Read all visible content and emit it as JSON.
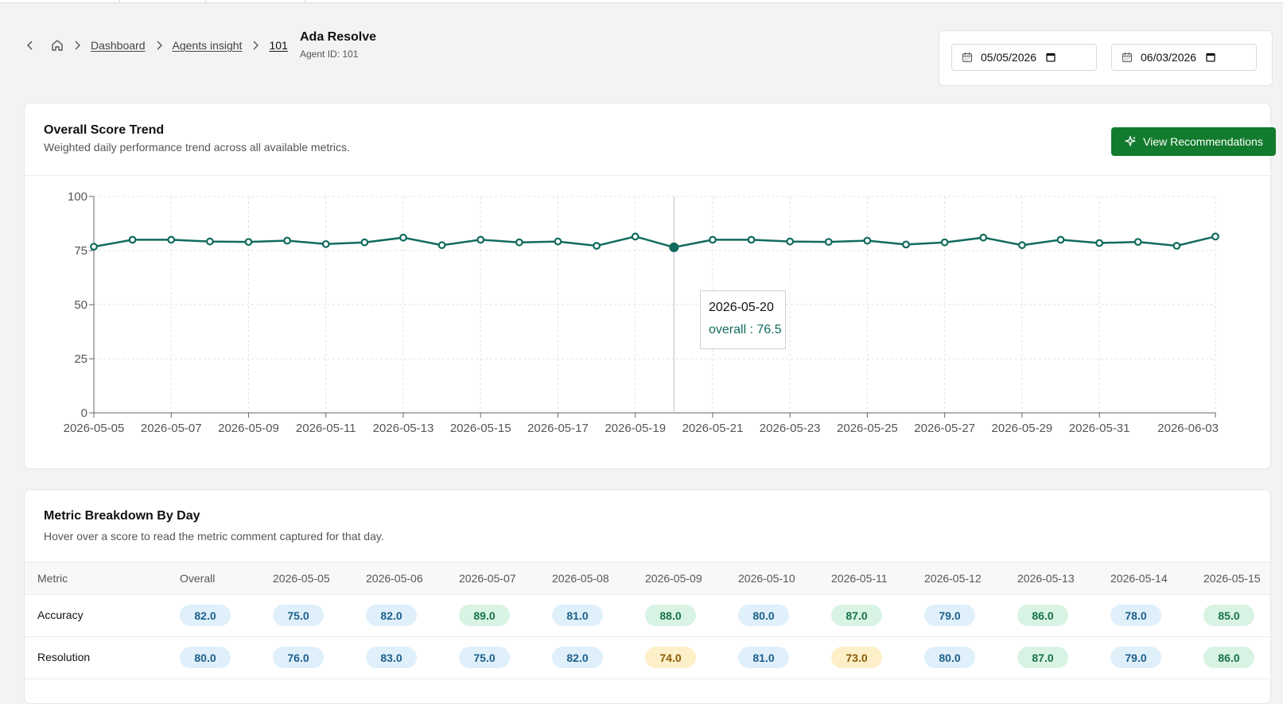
{
  "breadcrumb": {
    "items": [
      "Dashboard",
      "Agents insight",
      "101"
    ]
  },
  "agent": {
    "name": "Ada Resolve",
    "id_text": "Agent ID: 101"
  },
  "date_range": {
    "start": "05/05/2026",
    "end": "06/03/2026"
  },
  "trend_card": {
    "title": "Overall Score Trend",
    "subtitle": "Weighted daily performance trend across all available metrics.",
    "button_label": "View Recommendations"
  },
  "tooltip": {
    "date": "2026-05-20",
    "text": "overall : 76.5"
  },
  "colors": {
    "accent": "#137b2d",
    "line": "#116b5e"
  },
  "chart_data": {
    "type": "line",
    "x": [
      "2026-05-05",
      "2026-05-06",
      "2026-05-07",
      "2026-05-08",
      "2026-05-09",
      "2026-05-10",
      "2026-05-11",
      "2026-05-12",
      "2026-05-13",
      "2026-05-14",
      "2026-05-15",
      "2026-05-16",
      "2026-05-17",
      "2026-05-18",
      "2026-05-19",
      "2026-05-20",
      "2026-05-21",
      "2026-05-22",
      "2026-05-23",
      "2026-05-24",
      "2026-05-25",
      "2026-05-26",
      "2026-05-27",
      "2026-05-28",
      "2026-05-29",
      "2026-05-30",
      "2026-05-31",
      "2026-06-01",
      "2026-06-02",
      "2026-06-03"
    ],
    "series": [
      {
        "name": "overall",
        "values": [
          76.8,
          80.0,
          80.0,
          79.2,
          79.0,
          79.6,
          78.0,
          78.8,
          81.0,
          77.5,
          80.0,
          78.8,
          79.2,
          77.2,
          81.5,
          76.5,
          80.0,
          80.0,
          79.2,
          79.0,
          79.6,
          77.8,
          78.8,
          81.0,
          77.5,
          80.0,
          78.5,
          79.0,
          77.2,
          81.5
        ]
      }
    ],
    "x_tick_labels": [
      "2026-05-05",
      "2026-05-07",
      "2026-05-09",
      "2026-05-11",
      "2026-05-13",
      "2026-05-15",
      "2026-05-17",
      "2026-05-19",
      "2026-05-21",
      "2026-05-23",
      "2026-05-25",
      "2026-05-27",
      "2026-05-29",
      "2026-05-31",
      "2026-06-03"
    ],
    "y_ticks": [
      0,
      25,
      50,
      75,
      100
    ],
    "ylim": [
      0,
      100
    ],
    "grid": true,
    "highlight_x": "2026-05-20"
  },
  "breakdown_card": {
    "title": "Metric Breakdown By Day",
    "subtitle": "Hover over a score to read the metric comment captured for that day."
  },
  "table": {
    "headers": [
      "Metric",
      "Overall",
      "2026-05-05",
      "2026-05-06",
      "2026-05-07",
      "2026-05-08",
      "2026-05-09",
      "2026-05-10",
      "2026-05-11",
      "2026-05-12",
      "2026-05-13",
      "2026-05-14",
      "2026-05-15"
    ],
    "rows": [
      {
        "metric": "Accuracy",
        "values": [
          "82.0",
          "75.0",
          "82.0",
          "89.0",
          "81.0",
          "88.0",
          "80.0",
          "87.0",
          "79.0",
          "86.0",
          "78.0",
          "85.0"
        ],
        "tones": [
          "blue",
          "blue",
          "blue",
          "green",
          "blue",
          "green",
          "blue",
          "green",
          "blue",
          "green",
          "blue",
          "green"
        ]
      },
      {
        "metric": "Resolution",
        "values": [
          "80.0",
          "76.0",
          "83.0",
          "75.0",
          "82.0",
          "74.0",
          "81.0",
          "73.0",
          "80.0",
          "87.0",
          "79.0",
          "86.0"
        ],
        "tones": [
          "blue",
          "blue",
          "blue",
          "blue",
          "blue",
          "amber",
          "blue",
          "amber",
          "blue",
          "green",
          "blue",
          "green"
        ]
      }
    ]
  }
}
